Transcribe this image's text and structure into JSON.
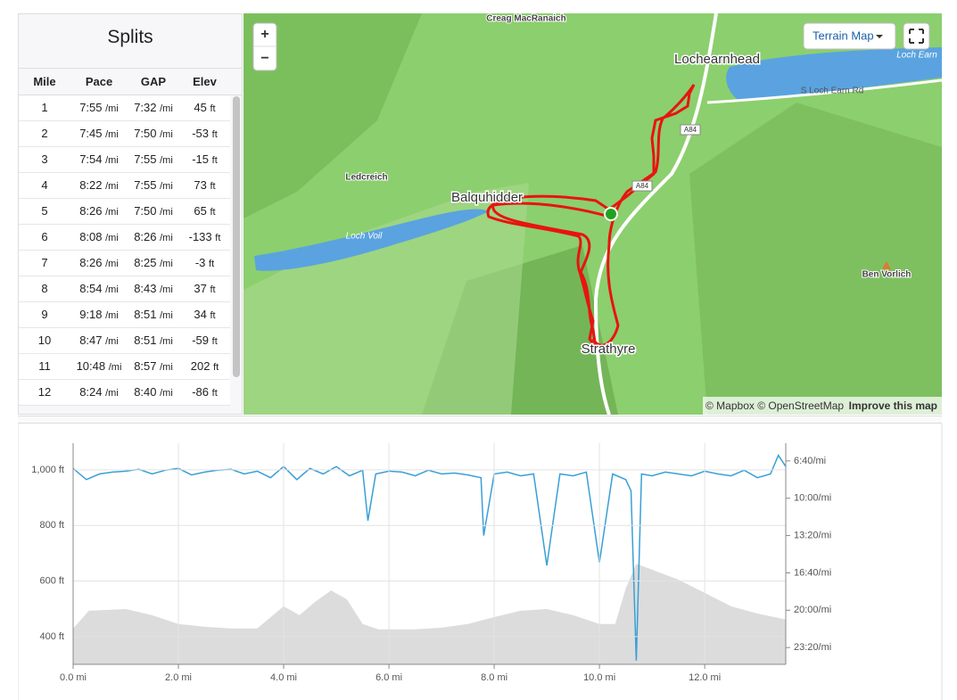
{
  "splits": {
    "title": "Splits",
    "columns": [
      "Mile",
      "Pace",
      "GAP",
      "Elev"
    ],
    "pace_unit": "/mi",
    "elev_unit": "ft",
    "rows": [
      [
        "1",
        "7:55",
        "7:32",
        "45"
      ],
      [
        "2",
        "7:45",
        "7:50",
        "-53"
      ],
      [
        "3",
        "7:54",
        "7:55",
        "-15"
      ],
      [
        "4",
        "8:22",
        "7:55",
        "73"
      ],
      [
        "5",
        "8:26",
        "7:50",
        "65"
      ],
      [
        "6",
        "8:08",
        "8:26",
        "-133"
      ],
      [
        "7",
        "8:26",
        "8:25",
        "-3"
      ],
      [
        "8",
        "8:54",
        "8:43",
        "37"
      ],
      [
        "9",
        "9:18",
        "8:51",
        "34"
      ],
      [
        "10",
        "8:47",
        "8:51",
        "-59"
      ],
      [
        "11",
        "10:48",
        "8:57",
        "202"
      ],
      [
        "12",
        "8:24",
        "8:40",
        "-86"
      ]
    ]
  },
  "map": {
    "zoom_in": "+",
    "zoom_out": "−",
    "style_button": "Terrain Map",
    "labels": {
      "creag": "Creag MacRanaich",
      "lochearnhead": "Lochearnhead",
      "loch_earn": "Loch Earn",
      "road": "S Loch Earn Rd",
      "a84": "A84",
      "ledcreich": "Ledcreich",
      "balquhidder": "Balquhidder",
      "loch_voil": "Loch Voil",
      "strathyre": "Strathyre",
      "ben_vorlich": "Ben Vorlich"
    },
    "attribution": "© Mapbox © OpenStreetMap",
    "improve": "Improve this map"
  },
  "chart_data": {
    "type": "line",
    "grid": true,
    "xlim": [
      0,
      13.54
    ],
    "xticks": [
      {
        "value": 0,
        "label": "0.0 mi"
      },
      {
        "value": 2,
        "label": "2.0 mi"
      },
      {
        "value": 4,
        "label": "4.0 mi"
      },
      {
        "value": 6,
        "label": "6.0 mi"
      },
      {
        "value": 8,
        "label": "8.0 mi"
      },
      {
        "value": 10,
        "label": "10.0 mi"
      },
      {
        "value": 12,
        "label": "12.0 mi"
      }
    ],
    "ylim": [
      300,
      1096
    ],
    "yticks": [
      {
        "value": 1000,
        "label": "1,000 ft"
      },
      {
        "value": 800,
        "label": "800 ft"
      },
      {
        "value": 600,
        "label": "600 ft"
      },
      {
        "value": 400,
        "label": "400 ft"
      }
    ],
    "y2lim": [
      1490,
      305
    ],
    "y2ticks": [
      {
        "value": 400,
        "label": "6:40/mi"
      },
      {
        "value": 600,
        "label": "10:00/mi"
      },
      {
        "value": 800,
        "label": "13:20/mi"
      },
      {
        "value": 1000,
        "label": "16:40/mi"
      },
      {
        "value": 1200,
        "label": "20:00/mi"
      },
      {
        "value": 1400,
        "label": "23:20/mi"
      }
    ],
    "series": [
      {
        "type": "area",
        "color": "#dcdcdc",
        "x": [
          0,
          0.3,
          1,
          1.5,
          2,
          2.5,
          3,
          3.5,
          3.7,
          4,
          4.3,
          4.6,
          4.9,
          5.2,
          5.5,
          5.8,
          6.5,
          7,
          7.5,
          8,
          8.5,
          9,
          9.5,
          10,
          10.3,
          10.5,
          10.7,
          11.5,
          12,
          12.5,
          13,
          13.54
        ],
        "values": [
          429,
          493,
          499,
          477,
          445,
          435,
          429,
          429,
          461,
          509,
          477,
          525,
          566,
          534,
          445,
          426,
          426,
          432,
          445,
          470,
          493,
          499,
          477,
          445,
          445,
          573,
          662,
          605,
          557,
          509,
          483,
          461
        ]
      },
      {
        "type": "line",
        "axis": "y2",
        "color": "#3a9fd6",
        "x": [
          0,
          0.25,
          0.5,
          0.75,
          1,
          1.25,
          1.5,
          1.75,
          2,
          2.25,
          2.5,
          2.75,
          3,
          3.25,
          3.5,
          3.75,
          4,
          4.25,
          4.5,
          4.75,
          5,
          5.25,
          5.5,
          5.6,
          5.75,
          6,
          6.25,
          6.5,
          6.75,
          7,
          7.25,
          7.5,
          7.75,
          7.8,
          8,
          8.25,
          8.5,
          8.75,
          9,
          9.25,
          9.5,
          9.75,
          10,
          10.25,
          10.5,
          10.6,
          10.7,
          10.8,
          11,
          11.25,
          11.5,
          11.75,
          12,
          12.25,
          12.5,
          12.75,
          13,
          13.25,
          13.4,
          13.54
        ],
        "values": [
          440,
          500,
          470,
          460,
          455,
          445,
          470,
          450,
          440,
          475,
          460,
          450,
          445,
          470,
          455,
          490,
          430,
          500,
          440,
          470,
          430,
          480,
          450,
          720,
          470,
          455,
          460,
          480,
          450,
          470,
          465,
          475,
          490,
          800,
          470,
          460,
          480,
          470,
          960,
          470,
          480,
          460,
          945,
          470,
          500,
          560,
          1470,
          470,
          480,
          460,
          470,
          480,
          455,
          470,
          480,
          450,
          490,
          470,
          370,
          430
        ]
      }
    ]
  }
}
